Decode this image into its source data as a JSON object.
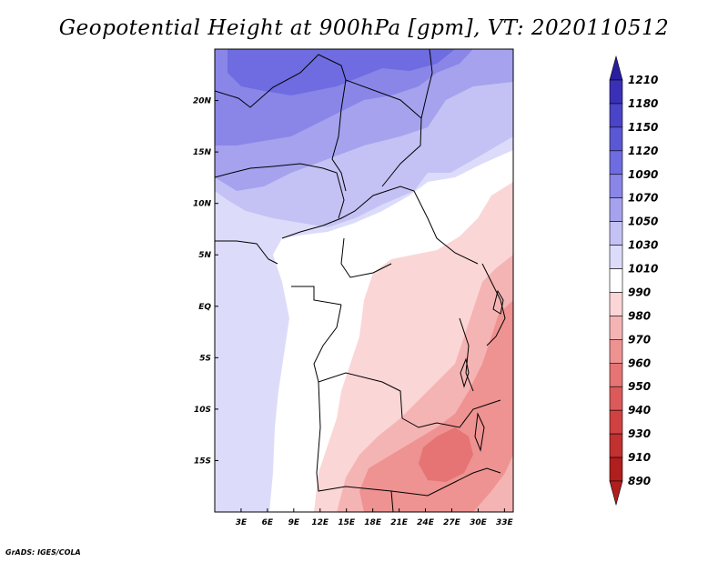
{
  "title": "Geopotential Height at 900hPa [gpm], VT: 2020110512",
  "credit": "GrADS: IGES/COLA",
  "map": {
    "lon_range": [
      0,
      34
    ],
    "lat_range": [
      -20,
      25
    ],
    "x_ticks": [
      {
        "value": 3,
        "label": "3E"
      },
      {
        "value": 6,
        "label": "6E"
      },
      {
        "value": 9,
        "label": "9E"
      },
      {
        "value": 12,
        "label": "12E"
      },
      {
        "value": 15,
        "label": "15E"
      },
      {
        "value": 18,
        "label": "18E"
      },
      {
        "value": 21,
        "label": "21E"
      },
      {
        "value": 24,
        "label": "24E"
      },
      {
        "value": 27,
        "label": "27E"
      },
      {
        "value": 30,
        "label": "30E"
      },
      {
        "value": 33,
        "label": "33E"
      }
    ],
    "y_ticks": [
      {
        "value": 20,
        "label": "20N"
      },
      {
        "value": 15,
        "label": "15N"
      },
      {
        "value": 10,
        "label": "10N"
      },
      {
        "value": 5,
        "label": "5N"
      },
      {
        "value": 0,
        "label": "EQ"
      },
      {
        "value": -5,
        "label": "5S"
      },
      {
        "value": -10,
        "label": "10S"
      },
      {
        "value": -15,
        "label": "15S"
      }
    ]
  },
  "colorbar": {
    "levels": [
      "1210",
      "1180",
      "1150",
      "1120",
      "1090",
      "1070",
      "1050",
      "1030",
      "1010",
      "990",
      "980",
      "970",
      "960",
      "950",
      "940",
      "930",
      "910",
      "890"
    ],
    "colors": [
      "#2a1ea0",
      "#3a30b8",
      "#4a44c8",
      "#5a58d4",
      "#6e6ce0",
      "#8a86e8",
      "#a6a2ee",
      "#c4c2f4",
      "#dcdcfa",
      "#ffffff",
      "#fbd6d6",
      "#f5b4b4",
      "#ee9292",
      "#e67474",
      "#dc5a5a",
      "#d04242",
      "#c23030",
      "#b01e1e"
    ]
  }
}
